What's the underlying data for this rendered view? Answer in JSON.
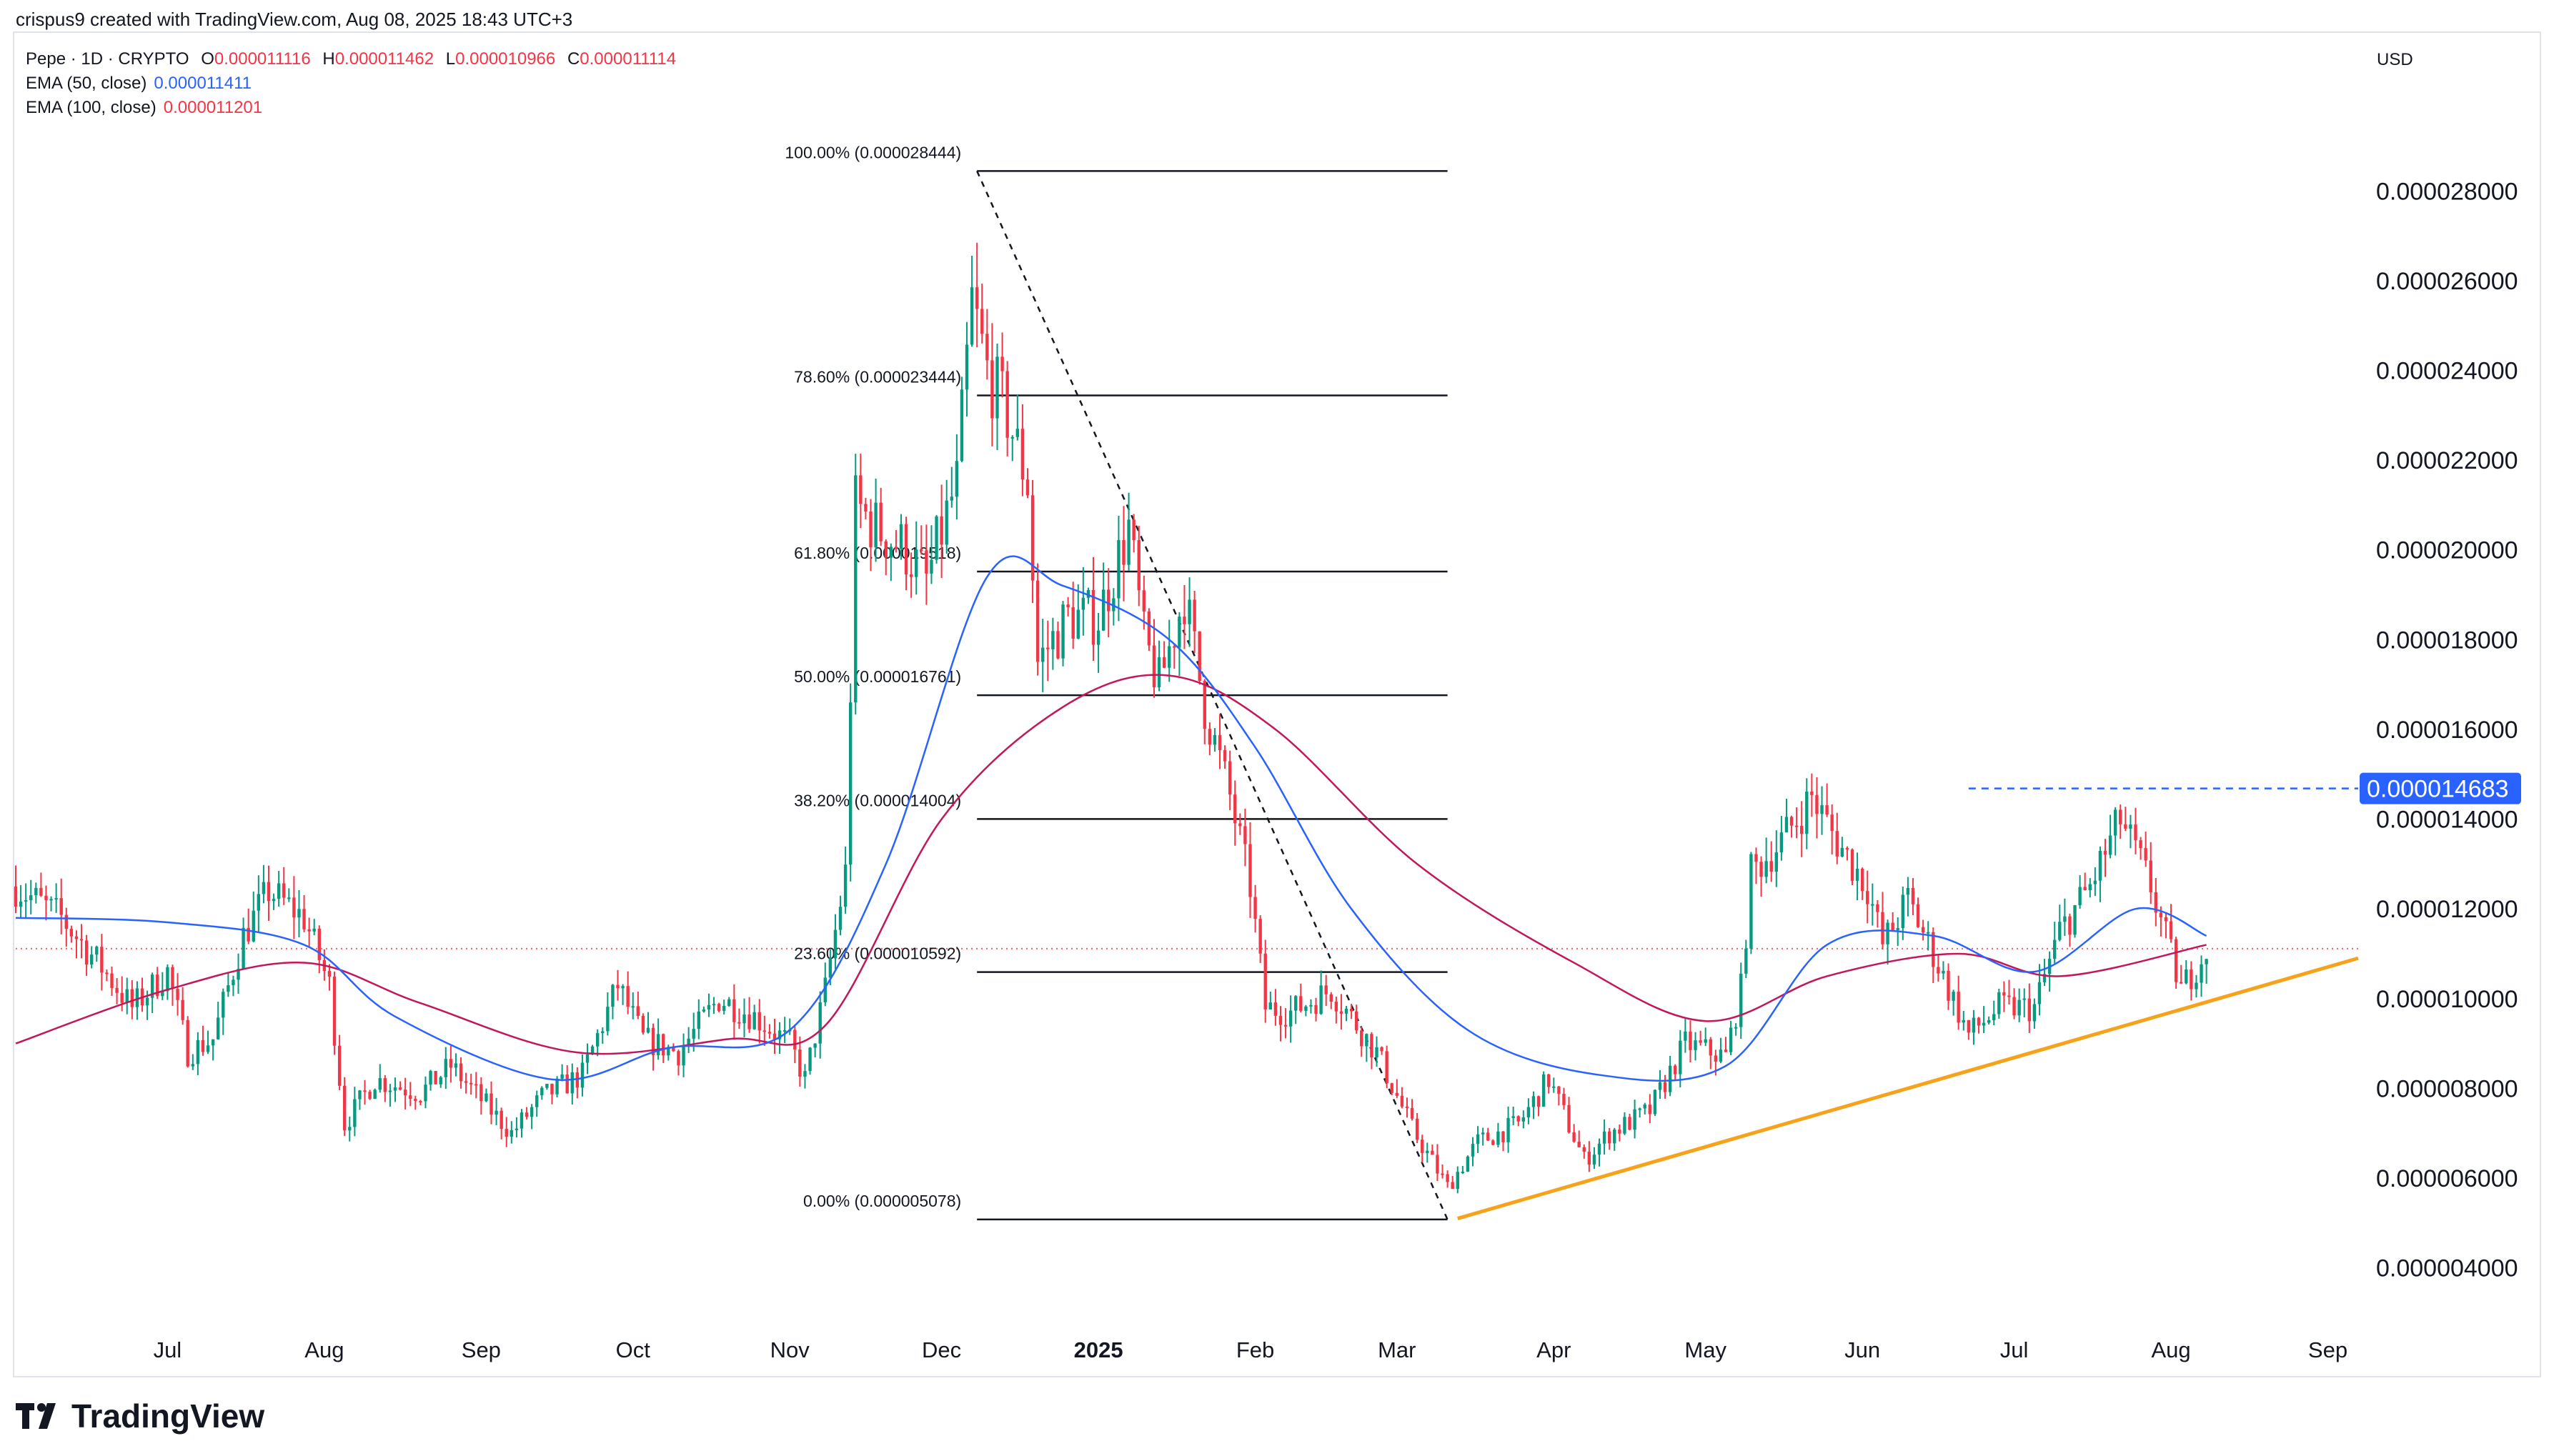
{
  "header": {
    "text": "crispus9 created with TradingView.com, Aug 08, 2025 18:43 UTC+3"
  },
  "legend": {
    "symbol": "Pepe · 1D · CRYPTO",
    "open_key": "O",
    "open": "0.000011116",
    "high_key": "H",
    "high": "0.000011462",
    "low_key": "L",
    "low": "0.000010966",
    "close_key": "C",
    "close": "0.000011114",
    "ema50_label": "EMA (50, close)",
    "ema50_value": "0.000011411",
    "ema100_label": "EMA (100, close)",
    "ema100_value": "0.000011201"
  },
  "currency": "USD",
  "brand": "TradingView",
  "colors": {
    "up": "#089981",
    "down": "#f23645",
    "ema50": "#2962ff",
    "ema100": "#c2185b",
    "trendline": "#f7a21b",
    "price_line": "#f23645",
    "resistance": "#2962ff",
    "badge_bg": "#2962ff",
    "badge_text": "#ffffff"
  },
  "chart_data": {
    "type": "candlestick",
    "ylim": [
      2.8e-06,
      3.06e-05
    ],
    "x_range": [
      "2024-06-01",
      "2025-09-07"
    ],
    "y_ticks": [
      "0.000004000",
      "0.000006000",
      "0.000008000",
      "0.000010000",
      "0.000012000",
      "0.000014000",
      "0.000016000",
      "0.000018000",
      "0.000020000",
      "0.000022000",
      "0.000024000",
      "0.000026000",
      "0.000028000"
    ],
    "y_tick_values": [
      4e-06,
      6e-06,
      8e-06,
      1e-05,
      1.2e-05,
      1.4e-05,
      1.6e-05,
      1.8e-05,
      2e-05,
      2.2e-05,
      2.4e-05,
      2.6e-05,
      2.8e-05
    ],
    "x_ticks": [
      {
        "label": "Jul",
        "date": "2024-07-01",
        "bold": false
      },
      {
        "label": "Aug",
        "date": "2024-08-01",
        "bold": false
      },
      {
        "label": "Sep",
        "date": "2024-09-01",
        "bold": false
      },
      {
        "label": "Oct",
        "date": "2024-10-01",
        "bold": false
      },
      {
        "label": "Nov",
        "date": "2024-11-01",
        "bold": false
      },
      {
        "label": "Dec",
        "date": "2024-12-01",
        "bold": false
      },
      {
        "label": "2025",
        "date": "2025-01-01",
        "bold": true
      },
      {
        "label": "Feb",
        "date": "2025-02-01",
        "bold": false
      },
      {
        "label": "Mar",
        "date": "2025-03-01",
        "bold": false
      },
      {
        "label": "Apr",
        "date": "2025-04-01",
        "bold": false
      },
      {
        "label": "May",
        "date": "2025-05-01",
        "bold": false
      },
      {
        "label": "Jun",
        "date": "2025-06-01",
        "bold": false
      },
      {
        "label": "Jul",
        "date": "2025-07-01",
        "bold": false
      },
      {
        "label": "Aug",
        "date": "2025-08-01",
        "bold": false
      },
      {
        "label": "Sep",
        "date": "2025-09-01",
        "bold": false
      }
    ],
    "fibonacci": {
      "start_date": "2024-12-08",
      "end_date": "2025-03-11",
      "levels": [
        {
          "label": "100.00% (0.000028444)",
          "value": 2.8444e-05
        },
        {
          "label": "78.60% (0.000023444)",
          "value": 2.3444e-05
        },
        {
          "label": "61.80% (0.000019518)",
          "value": 1.9518e-05
        },
        {
          "label": "50.00% (0.000016761)",
          "value": 1.6761e-05
        },
        {
          "label": "38.20% (0.000014004)",
          "value": 1.4004e-05
        },
        {
          "label": "23.60% (0.000010592)",
          "value": 1.0592e-05
        },
        {
          "label": "0.00% (0.000005078)",
          "value": 5.078e-06
        }
      ],
      "diagonal": [
        [
          "2024-12-08",
          2.8444e-05
        ],
        [
          "2025-03-11",
          5.078e-06
        ]
      ]
    },
    "trendline": [
      [
        "2025-03-13",
        5.1e-06
      ],
      [
        "2025-09-07",
        1.09e-05
      ]
    ],
    "resistance": {
      "value": 1.4683e-05,
      "from": "2025-06-22",
      "label": "0.000014683"
    },
    "last_price": 1.1114e-05,
    "price_path": [
      [
        "2024-06-01",
        1.25e-05
      ],
      [
        "2024-06-10",
        1.18e-05
      ],
      [
        "2024-06-18",
        1.07e-05
      ],
      [
        "2024-06-24",
        9.8e-06
      ],
      [
        "2024-07-01",
        1.06e-05
      ],
      [
        "2024-07-05",
        8.8e-06
      ],
      [
        "2024-07-10",
        9.1e-06
      ],
      [
        "2024-07-16",
        1.14e-05
      ],
      [
        "2024-07-21",
        1.24e-05
      ],
      [
        "2024-07-28",
        1.18e-05
      ],
      [
        "2024-08-02",
        1.03e-05
      ],
      [
        "2024-08-05",
        7.2e-06
      ],
      [
        "2024-08-11",
        8.2e-06
      ],
      [
        "2024-08-20",
        7.9e-06
      ],
      [
        "2024-08-26",
        8.5e-06
      ],
      [
        "2024-09-03",
        7.5e-06
      ],
      [
        "2024-09-07",
        7e-06
      ],
      [
        "2024-09-13",
        7.8e-06
      ],
      [
        "2024-09-21",
        8.3e-06
      ],
      [
        "2024-09-28",
        1.03e-05
      ],
      [
        "2024-10-03",
        9.1e-06
      ],
      [
        "2024-10-10",
        8.8e-06
      ],
      [
        "2024-10-18",
        1e-05
      ],
      [
        "2024-10-25",
        9.6e-06
      ],
      [
        "2024-11-01",
        9e-06
      ],
      [
        "2024-11-04",
        8.2e-06
      ],
      [
        "2024-11-08",
        1.02e-05
      ],
      [
        "2024-11-12",
        1.28e-05
      ],
      [
        "2024-11-14",
        2.1e-05
      ],
      [
        "2024-11-18",
        2.05e-05
      ],
      [
        "2024-11-24",
        2e-05
      ],
      [
        "2024-11-28",
        1.93e-05
      ],
      [
        "2024-12-04",
        2.15e-05
      ],
      [
        "2024-12-07",
        2.55e-05
      ],
      [
        "2024-12-10",
        2.4e-05
      ],
      [
        "2024-12-14",
        2.3e-05
      ],
      [
        "2024-12-18",
        2.15e-05
      ],
      [
        "2024-12-20",
        1.75e-05
      ],
      [
        "2024-12-26",
        1.85e-05
      ],
      [
        "2025-01-01",
        1.85e-05
      ],
      [
        "2025-01-07",
        2.05e-05
      ],
      [
        "2025-01-10",
        1.8e-05
      ],
      [
        "2025-01-13",
        1.7e-05
      ],
      [
        "2025-01-18",
        1.9e-05
      ],
      [
        "2025-01-22",
        1.65e-05
      ],
      [
        "2025-01-27",
        1.45e-05
      ],
      [
        "2025-01-31",
        1.25e-05
      ],
      [
        "2025-02-03",
        9.8e-06
      ],
      [
        "2025-02-08",
        9.7e-06
      ],
      [
        "2025-02-16",
        1.02e-05
      ],
      [
        "2025-02-25",
        8.8e-06
      ],
      [
        "2025-03-04",
        7.1e-06
      ],
      [
        "2025-03-11",
        5.8e-06
      ],
      [
        "2025-03-17",
        6.8e-06
      ],
      [
        "2025-03-25",
        7.2e-06
      ],
      [
        "2025-03-31",
        8.2e-06
      ],
      [
        "2025-04-07",
        6.4e-06
      ],
      [
        "2025-04-12",
        7e-06
      ],
      [
        "2025-04-20",
        7.5e-06
      ],
      [
        "2025-04-27",
        9e-06
      ],
      [
        "2025-05-05",
        8.7e-06
      ],
      [
        "2025-05-08",
        1.02e-05
      ],
      [
        "2025-05-10",
        1.28e-05
      ],
      [
        "2025-05-16",
        1.35e-05
      ],
      [
        "2025-05-22",
        1.45e-05
      ],
      [
        "2025-05-27",
        1.35e-05
      ],
      [
        "2025-06-02",
        1.25e-05
      ],
      [
        "2025-06-05",
        1.12e-05
      ],
      [
        "2025-06-10",
        1.22e-05
      ],
      [
        "2025-06-15",
        1.1e-05
      ],
      [
        "2025-06-22",
        9.2e-06
      ],
      [
        "2025-06-28",
        9.8e-06
      ],
      [
        "2025-07-05",
        9.8e-06
      ],
      [
        "2025-07-10",
        1.15e-05
      ],
      [
        "2025-07-16",
        1.25e-05
      ],
      [
        "2025-07-22",
        1.4e-05
      ],
      [
        "2025-07-28",
        1.25e-05
      ],
      [
        "2025-08-03",
        1.02e-05
      ],
      [
        "2025-08-08",
        1.11e-05
      ]
    ],
    "ema50_path": [
      [
        "2024-06-01",
        1.18e-05
      ],
      [
        "2024-07-01",
        1.17e-05
      ],
      [
        "2024-07-28",
        1.12e-05
      ],
      [
        "2024-08-15",
        9.6e-06
      ],
      [
        "2024-09-15",
        8.2e-06
      ],
      [
        "2024-10-08",
        8.9e-06
      ],
      [
        "2024-11-01",
        9.3e-06
      ],
      [
        "2024-11-20",
        1.3e-05
      ],
      [
        "2024-12-10",
        1.94e-05
      ],
      [
        "2024-12-25",
        1.92e-05
      ],
      [
        "2025-01-15",
        1.8e-05
      ],
      [
        "2025-02-01",
        1.56e-05
      ],
      [
        "2025-02-20",
        1.2e-05
      ],
      [
        "2025-03-15",
        9.3e-06
      ],
      [
        "2025-04-10",
        8.3e-06
      ],
      [
        "2025-05-05",
        8.5e-06
      ],
      [
        "2025-05-25",
        1.12e-05
      ],
      [
        "2025-06-15",
        1.14e-05
      ],
      [
        "2025-07-05",
        1.06e-05
      ],
      [
        "2025-07-25",
        1.2e-05
      ],
      [
        "2025-08-08",
        1.14e-05
      ]
    ],
    "ema100_path": [
      [
        "2024-06-01",
        9e-06
      ],
      [
        "2024-07-01",
        1.02e-05
      ],
      [
        "2024-07-28",
        1.08e-05
      ],
      [
        "2024-08-20",
        9.9e-06
      ],
      [
        "2024-09-20",
        8.8e-06
      ],
      [
        "2024-10-20",
        9.1e-06
      ],
      [
        "2024-11-08",
        9.4e-06
      ],
      [
        "2024-12-01",
        1.4e-05
      ],
      [
        "2024-12-25",
        1.65e-05
      ],
      [
        "2025-01-15",
        1.72e-05
      ],
      [
        "2025-02-05",
        1.6e-05
      ],
      [
        "2025-03-05",
        1.3e-05
      ],
      [
        "2025-04-05",
        1.08e-05
      ],
      [
        "2025-05-01",
        9.5e-06
      ],
      [
        "2025-05-25",
        1.05e-05
      ],
      [
        "2025-06-20",
        1.1e-05
      ],
      [
        "2025-07-10",
        1.05e-05
      ],
      [
        "2025-08-08",
        1.12e-05
      ]
    ]
  }
}
